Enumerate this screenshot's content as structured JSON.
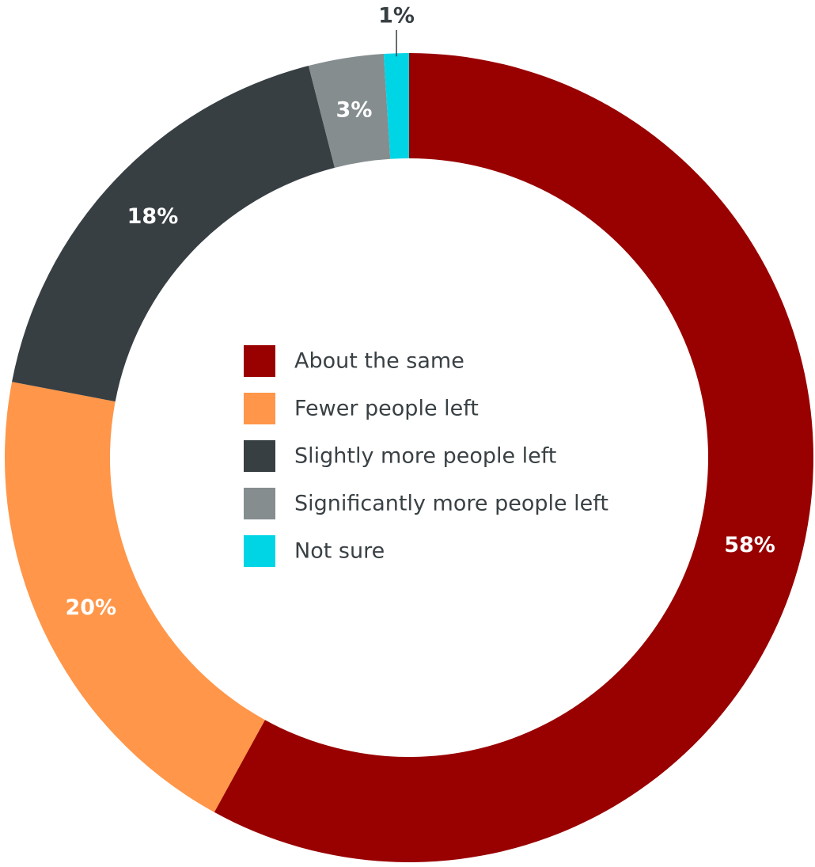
{
  "chart_data": {
    "type": "pie",
    "title": "",
    "donut": true,
    "legend_position": "center",
    "slices": [
      {
        "label": "About the same",
        "value": 58,
        "display": "58%",
        "color": "#990000",
        "label_color": "#ffffff"
      },
      {
        "label": "Fewer people left",
        "value": 20,
        "display": "20%",
        "color": "#ff9649",
        "label_color": "#ffffff"
      },
      {
        "label": "Slightly more people left",
        "value": 18,
        "display": "18%",
        "color": "#373f43",
        "label_color": "#ffffff"
      },
      {
        "label": "Significantly more people left",
        "value": 3,
        "display": "3%",
        "color": "#858d8f",
        "label_color": "#ffffff"
      },
      {
        "label": "Not sure",
        "value": 1,
        "display": "1%",
        "color": "#00d5e6",
        "label_color": "#373f43"
      }
    ]
  }
}
